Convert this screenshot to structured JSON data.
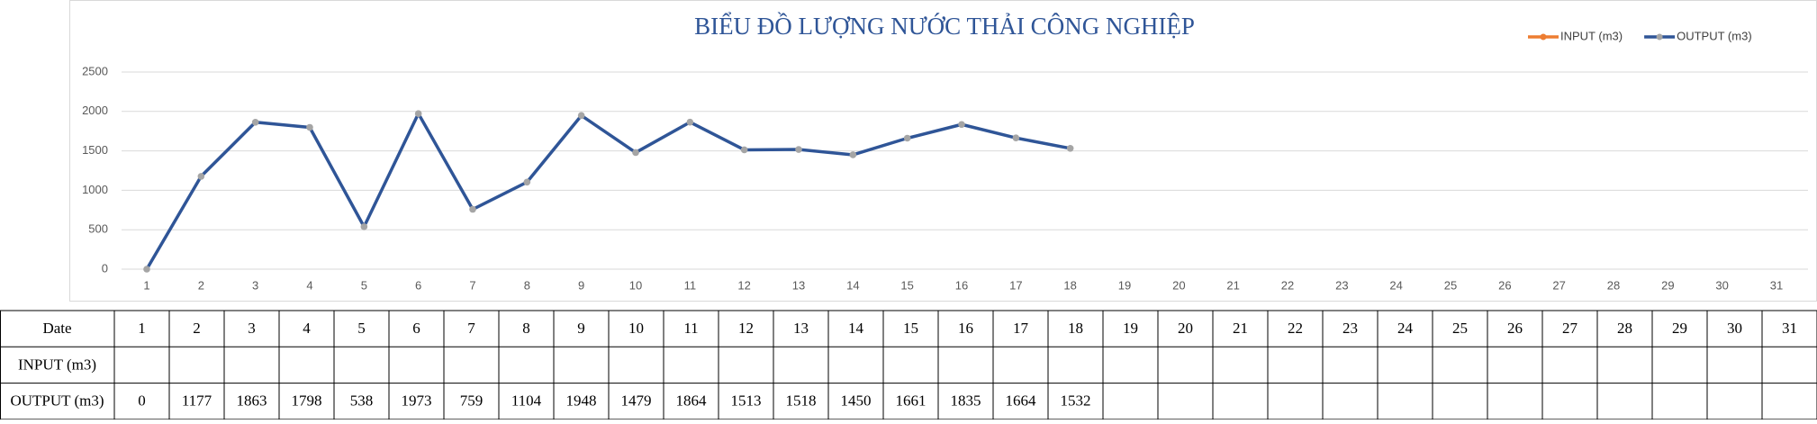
{
  "chart_data": {
    "type": "line",
    "title": "BIỂU ĐỒ LƯỢNG NƯỚC THẢI CÔNG NGHIỆP",
    "categories": [
      1,
      2,
      3,
      4,
      5,
      6,
      7,
      8,
      9,
      10,
      11,
      12,
      13,
      14,
      15,
      16,
      17,
      18,
      19,
      20,
      21,
      22,
      23,
      24,
      25,
      26,
      27,
      28,
      29,
      30,
      31
    ],
    "series": [
      {
        "name": "INPUT (m3)",
        "color": "#ed7d31",
        "values": [
          null,
          null,
          null,
          null,
          null,
          null,
          null,
          null,
          null,
          null,
          null,
          null,
          null,
          null,
          null,
          null,
          null,
          null,
          null,
          null,
          null,
          null,
          null,
          null,
          null,
          null,
          null,
          null,
          null,
          null,
          null
        ]
      },
      {
        "name": "OUTPUT (m3)",
        "color": "#2f5597",
        "marker_color": "#a5a5a5",
        "values": [
          0,
          1177,
          1863,
          1798,
          538,
          1973,
          759,
          1104,
          1948,
          1479,
          1864,
          1513,
          1518,
          1450,
          1661,
          1835,
          1664,
          1532,
          null,
          null,
          null,
          null,
          null,
          null,
          null,
          null,
          null,
          null,
          null,
          null,
          null
        ]
      }
    ],
    "ylim": [
      0,
      2500
    ],
    "yticks": [
      0,
      500,
      1000,
      1500,
      2000,
      2500
    ],
    "grid": true,
    "legend": "top-right"
  },
  "table": {
    "header": "Date"
  }
}
